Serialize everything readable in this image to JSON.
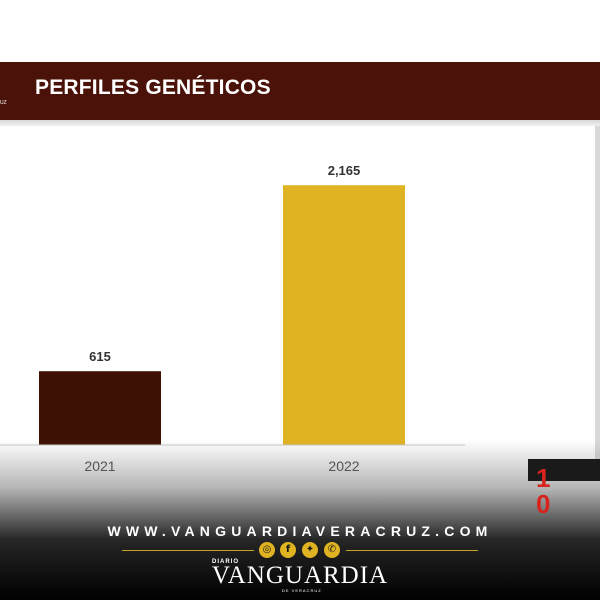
{
  "header": {
    "title": "PERFILES GENÉTICOS",
    "mark": "UZ"
  },
  "chart_data": {
    "type": "bar",
    "title": "PERFILES GENÉTICOS",
    "categories": [
      "2021",
      "2022"
    ],
    "values": [
      615,
      2165
    ],
    "value_labels": [
      "615",
      "2,165"
    ],
    "colors": [
      "#3f1104",
      "#e0b322"
    ],
    "xlabel": "",
    "ylabel": "",
    "ylim": [
      0,
      2500
    ],
    "grid": false,
    "legend": "none"
  },
  "corner": {
    "digits": "1 0"
  },
  "footer": {
    "website": "WWW.VANGUARDIAVERACRUZ.COM",
    "social_icons": [
      "instagram-icon",
      "facebook-icon",
      "twitter-icon",
      "whatsapp-icon"
    ],
    "brand_small": "DIARIO",
    "brand": "VANGUARDIA",
    "brand_sub": "DE VERACRUZ",
    "accent": "#c9a227"
  }
}
